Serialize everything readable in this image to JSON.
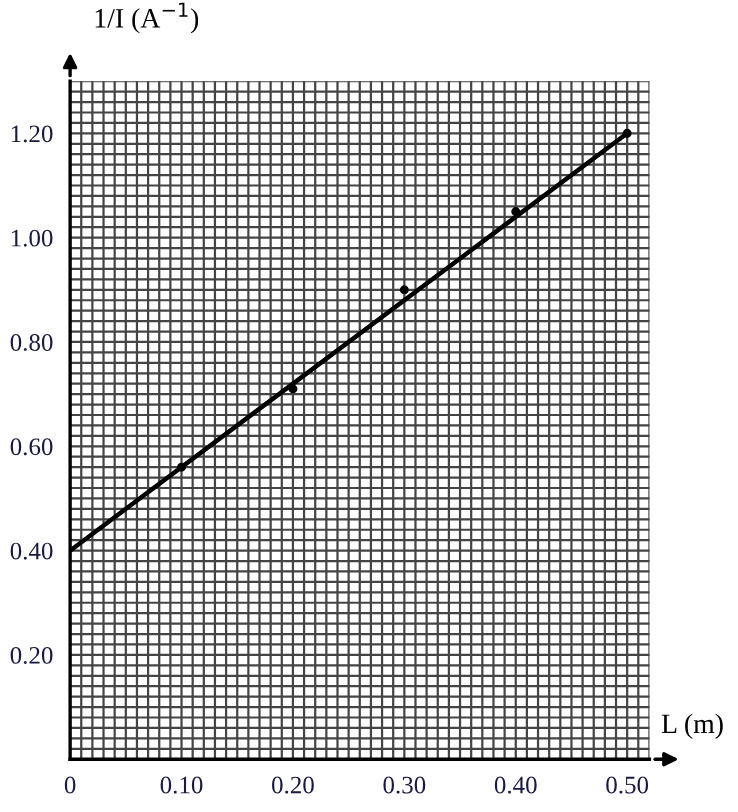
{
  "chart_data": {
    "type": "scatter",
    "xlabel": "L (m)",
    "ylabel": "1/I (A$^{−1}$)",
    "x": [
      0.1,
      0.2,
      0.3,
      0.4,
      0.5
    ],
    "series": [
      {
        "color": "#000000",
        "values": [
          0.56,
          0.71,
          0.9,
          1.05,
          1.2
        ],
        "marker": "circle"
      },
      {
        "type": "line",
        "color": "#000000",
        "x": [
          0,
          0.5
        ],
        "values": [
          0.4,
          1.2
        ],
        "marker": "none"
      }
    ],
    "xlim": [
      0,
      0.52
    ],
    "ylim": [
      0,
      1.3
    ],
    "xticks": [
      {
        "value": 0,
        "label": "0"
      },
      {
        "value": 0.1,
        "label": "0.10"
      },
      {
        "value": 0.2,
        "label": "0.20"
      },
      {
        "value": 0.3,
        "label": "0.30"
      },
      {
        "value": 0.4,
        "label": "0.40"
      },
      {
        "value": 0.5,
        "label": "0.50"
      }
    ],
    "yticks": [
      {
        "value": 0.2,
        "label": "0.20"
      },
      {
        "value": 0.4,
        "label": "0.40"
      },
      {
        "value": 0.6,
        "label": "0.60"
      },
      {
        "value": 0.8,
        "label": "0.80"
      },
      {
        "value": 1.0,
        "label": "1.00"
      },
      {
        "value": 1.2,
        "label": "1.20"
      }
    ],
    "grid": true
  }
}
